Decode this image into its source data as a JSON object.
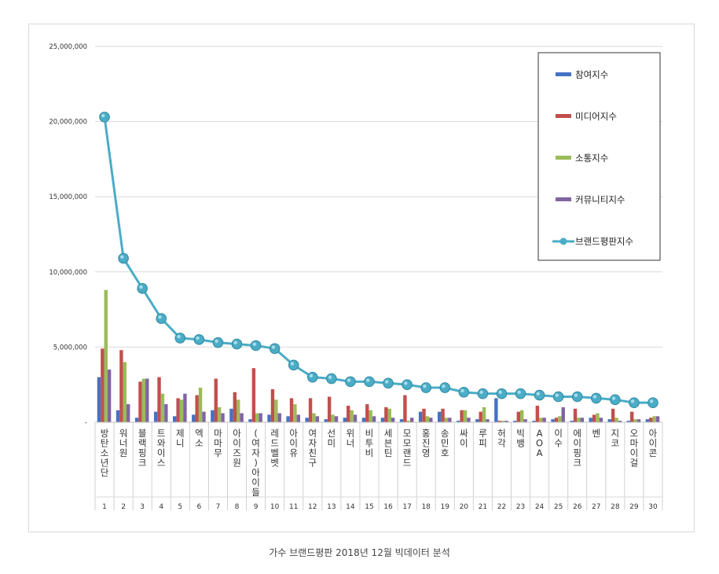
{
  "caption": "가수 브랜드평판 2018년 12월 빅데이터 분석",
  "chart_data": {
    "type": "bar",
    "combo_line_series": "브랜드평판지수",
    "y_ticks": [
      "25,000,000",
      "20,000,000",
      "15,000,000",
      "10,000,000",
      "5,000,000",
      "-"
    ],
    "ylim": [
      0,
      25000000
    ],
    "grid": true,
    "legend_position": "top-right",
    "categories": [
      "방탄소년단",
      "워너원",
      "블랙핑크",
      "트와이스",
      "제니",
      "엑소",
      "마마무",
      "아이즈원",
      "(여자)아이들",
      "레드벨벳",
      "아이유",
      "여자친구",
      "선미",
      "위너",
      "비투비",
      "세븐틴",
      "모모랜드",
      "홍진영",
      "송민호",
      "싸이",
      "루피",
      "허각",
      "빅뱅",
      "AOA",
      "이수",
      "에이핑크",
      "벤",
      "지코",
      "오마이걸",
      "아이콘"
    ],
    "rank_labels": [
      "1",
      "2",
      "3",
      "4",
      "5",
      "6",
      "7",
      "8",
      "9",
      "10",
      "11",
      "12",
      "13",
      "14",
      "15",
      "16",
      "17",
      "18",
      "19",
      "20",
      "21",
      "22",
      "23",
      "24",
      "25",
      "26",
      "27",
      "28",
      "29",
      "30"
    ],
    "series": [
      {
        "name": "참여지수",
        "color": "#4472c4",
        "values": [
          3000000,
          800000,
          300000,
          700000,
          400000,
          500000,
          800000,
          900000,
          200000,
          500000,
          400000,
          300000,
          200000,
          300000,
          300000,
          300000,
          200000,
          700000,
          700000,
          100000,
          200000,
          1600000,
          100000,
          100000,
          200000,
          100000,
          300000,
          200000,
          100000,
          200000
        ]
      },
      {
        "name": "미디어지수",
        "color": "#c0504d",
        "values": [
          4900000,
          4800000,
          2700000,
          3000000,
          1600000,
          1800000,
          2900000,
          2000000,
          3600000,
          2200000,
          1600000,
          1600000,
          1700000,
          1100000,
          1200000,
          1000000,
          1800000,
          900000,
          900000,
          800000,
          700000,
          100000,
          700000,
          1100000,
          300000,
          900000,
          500000,
          900000,
          700000,
          300000
        ]
      },
      {
        "name": "소통지수",
        "color": "#9bbb59",
        "values": [
          8800000,
          4000000,
          2900000,
          1900000,
          1500000,
          2300000,
          1000000,
          1500000,
          600000,
          1500000,
          1200000,
          600000,
          500000,
          800000,
          800000,
          900000,
          100000,
          400000,
          300000,
          800000,
          1000000,
          100000,
          800000,
          300000,
          400000,
          300000,
          600000,
          300000,
          200000,
          400000
        ]
      },
      {
        "name": "커뮤니티지수",
        "color": "#8064a2",
        "values": [
          3500000,
          1200000,
          2900000,
          1200000,
          1900000,
          700000,
          600000,
          600000,
          600000,
          600000,
          500000,
          400000,
          400000,
          500000,
          400000,
          300000,
          300000,
          300000,
          300000,
          300000,
          200000,
          100000,
          200000,
          300000,
          1000000,
          300000,
          300000,
          100000,
          200000,
          400000
        ]
      },
      {
        "name": "브랜드평판지수",
        "color": "#4bacc6",
        "values": [
          20300000,
          10900000,
          8900000,
          6900000,
          5600000,
          5500000,
          5300000,
          5200000,
          5100000,
          4900000,
          3800000,
          3000000,
          2900000,
          2700000,
          2700000,
          2600000,
          2500000,
          2300000,
          2300000,
          2000000,
          1900000,
          1900000,
          1900000,
          1800000,
          1700000,
          1700000,
          1600000,
          1500000,
          1300000,
          1300000
        ]
      }
    ]
  }
}
